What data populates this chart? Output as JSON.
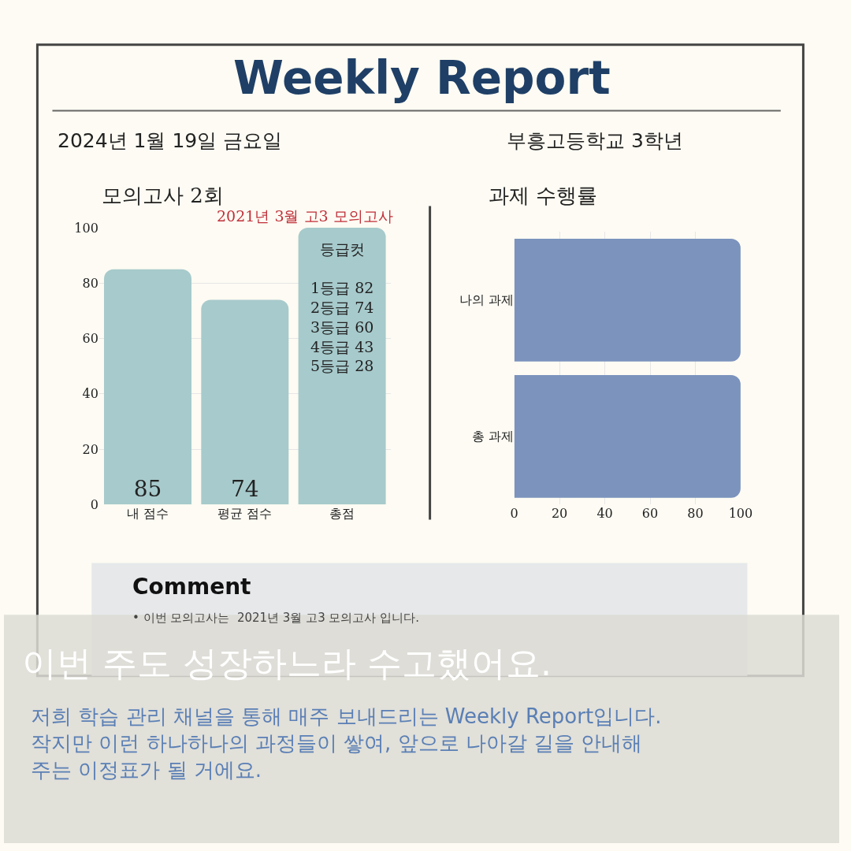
{
  "chart_data": [
    {
      "type": "bar",
      "title": "모의고사 2회",
      "subtitle": "2021년 3월 고3 모의고사",
      "categories": [
        "내 점수",
        "평균 점수",
        "총점"
      ],
      "values": [
        85,
        74,
        100
      ],
      "value_labels": [
        "85",
        "74",
        null
      ],
      "color": "#a7cacc",
      "ylim": [
        0,
        100
      ],
      "yticks": [
        0,
        20,
        40,
        60,
        80,
        100
      ],
      "grid": "y",
      "annotations": [
        "Weekly Report",
        "2024년 1월 19일 금요일",
        "부흥고등학교 3학년",
        "등급컷\n\n1등급 82\n2등급 74\n3등급 60\n4등급 43\n5등급 28",
        "Comment",
        "• 이번 모의고사는  2021년 3월 고3 모의고사 입니다.",
        "이번 주도 성장하느라 수고했어요.",
        "저희 학습 관리 채널을 통해 매주 보내드리는 Weekly Report입니다.\n작지만 이런 하나하나의 과정들이 쌓여, 앞으로 나아갈 길을 안내해\n주는 이정표가 될 거에요."
      ]
    },
    {
      "type": "bar",
      "title": "과제 수행률",
      "orientation": "horizontal",
      "categories": [
        "나의 과제",
        "총 과제"
      ],
      "values": [
        100,
        100
      ],
      "color": "#7b93bd",
      "xlim": [
        0,
        100
      ],
      "xticks": [
        0,
        20,
        40,
        60,
        80,
        100
      ],
      "grid": "x"
    }
  ]
}
